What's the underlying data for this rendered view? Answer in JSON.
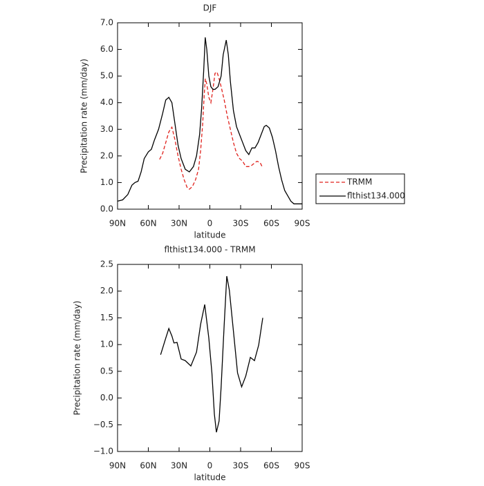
{
  "chart_data": [
    {
      "type": "line",
      "title": "DJF",
      "xlabel": "latitude",
      "ylabel": "Precipitation rate (mm/day)",
      "xlim": [
        90,
        -90
      ],
      "xticks": [
        {
          "value": 90,
          "label": "90N"
        },
        {
          "value": 60,
          "label": "60N"
        },
        {
          "value": 30,
          "label": "30N"
        },
        0,
        {
          "value": -30,
          "label": "30S"
        },
        {
          "value": -60,
          "label": "60S"
        },
        {
          "value": -90,
          "label": "90S"
        }
      ],
      "ylim": [
        0,
        7
      ],
      "yticks": [
        {
          "value": 0,
          "label": "0.0"
        },
        {
          "value": 1,
          "label": "1.0"
        },
        {
          "value": 2,
          "label": "2.0"
        },
        {
          "value": 3,
          "label": "3.0"
        },
        {
          "value": 4,
          "label": "4.0"
        },
        {
          "value": 5,
          "label": "5.0"
        },
        {
          "value": 6,
          "label": "6.0"
        },
        {
          "value": 7,
          "label": "7.0"
        }
      ],
      "legend": "outside right",
      "series": [
        {
          "name": "TRMM",
          "color": "#e0201b",
          "dash": true,
          "x": [
            49,
            46,
            43,
            40,
            37,
            34,
            31,
            28,
            25,
            22,
            20,
            17,
            14,
            11,
            9,
            7,
            5.5,
            4.4,
            3,
            1,
            -1,
            -3,
            -5,
            -7,
            -9,
            -11,
            -14,
            -17,
            -20,
            -23,
            -26,
            -29,
            -32,
            -35,
            -38,
            -41,
            -44,
            -46,
            -49,
            -51.6
          ],
          "values": [
            1.87,
            2.1,
            2.5,
            2.9,
            3.08,
            2.6,
            2.0,
            1.5,
            1.1,
            0.8,
            0.75,
            0.85,
            1.1,
            1.5,
            2.2,
            3.2,
            4.3,
            4.9,
            4.7,
            4.2,
            4.0,
            4.5,
            5.1,
            5.15,
            4.9,
            4.6,
            4.1,
            3.5,
            3.0,
            2.5,
            2.1,
            1.9,
            1.8,
            1.6,
            1.6,
            1.65,
            1.75,
            1.8,
            1.75,
            1.55
          ]
        },
        {
          "name": "flthist134.000",
          "color": "#000000",
          "dash": false,
          "x": [
            90,
            85,
            80,
            76,
            73,
            70,
            67,
            64,
            60,
            57,
            54,
            50,
            46,
            43,
            40,
            37,
            34,
            31,
            28,
            24,
            20,
            16,
            13,
            10,
            8,
            6,
            4.5,
            3,
            1,
            -1,
            -3,
            -5,
            -8,
            -11,
            -13,
            -16,
            -18,
            -20,
            -23,
            -26,
            -29,
            -32,
            -35,
            -38,
            -41,
            -44,
            -47,
            -50,
            -53,
            -55,
            -58,
            -61,
            -64,
            -67,
            -70,
            -73,
            -76,
            -79,
            -82,
            -90
          ],
          "values": [
            0.3,
            0.35,
            0.55,
            0.9,
            1.0,
            1.05,
            1.4,
            1.9,
            2.15,
            2.25,
            2.6,
            3.0,
            3.6,
            4.1,
            4.2,
            4.0,
            3.2,
            2.4,
            1.9,
            1.5,
            1.4,
            1.6,
            2.0,
            2.8,
            3.8,
            5.2,
            6.45,
            6.0,
            5.0,
            4.6,
            4.5,
            4.5,
            4.6,
            5.0,
            5.8,
            6.35,
            5.8,
            4.8,
            3.7,
            3.1,
            2.8,
            2.5,
            2.2,
            2.05,
            2.3,
            2.3,
            2.5,
            2.8,
            3.1,
            3.15,
            3.05,
            2.7,
            2.2,
            1.6,
            1.1,
            0.7,
            0.5,
            0.3,
            0.2,
            0.2
          ]
        }
      ]
    },
    {
      "type": "line",
      "title": "flthist134.000 - TRMM",
      "xlabel": "latitude",
      "ylabel": "Precipitation rate (mm/day)",
      "xlim": [
        90,
        -90
      ],
      "xticks": [
        {
          "value": 90,
          "label": "90N"
        },
        {
          "value": 60,
          "label": "60N"
        },
        {
          "value": 30,
          "label": "30N"
        },
        0,
        {
          "value": -30,
          "label": "30S"
        },
        {
          "value": -60,
          "label": "60S"
        },
        {
          "value": -90,
          "label": "90S"
        }
      ],
      "ylim": [
        -1,
        2.5
      ],
      "yticks": [
        {
          "value": -1,
          "label": "−1.0"
        },
        {
          "value": -0.5,
          "label": "−0.5"
        },
        {
          "value": 0,
          "label": "0.0"
        },
        0.5,
        {
          "value": 1,
          "label": "1.0"
        },
        1.5,
        {
          "value": 2,
          "label": "2.0"
        },
        2.5
      ],
      "series": [
        {
          "color": "#000000",
          "dash": false,
          "x": [
            48,
            43,
            40,
            37,
            35,
            32,
            28,
            24,
            18.5,
            13,
            9,
            5,
            1,
            -2,
            -4.4,
            -6.4,
            -9,
            -11,
            -14,
            -16.5,
            -19,
            -23,
            -27,
            -31,
            -35,
            -39.5,
            -43.5,
            -47.6,
            -51.6
          ],
          "values": [
            0.81,
            1.12,
            1.3,
            1.16,
            1.03,
            1.04,
            0.73,
            0.7,
            0.6,
            0.86,
            1.38,
            1.75,
            1.12,
            0.47,
            -0.3,
            -0.64,
            -0.43,
            0.21,
            1.38,
            2.28,
            2.02,
            1.25,
            0.47,
            0.21,
            0.41,
            0.76,
            0.7,
            0.99,
            1.5
          ]
        }
      ]
    }
  ]
}
